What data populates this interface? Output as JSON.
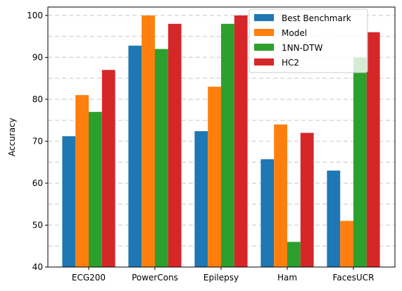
{
  "chart_data": {
    "type": "bar",
    "title": "",
    "xlabel": "",
    "ylabel": "Accuracy",
    "ylim": [
      40,
      102
    ],
    "yticks": [
      40,
      50,
      60,
      70,
      80,
      90,
      100
    ],
    "grid": "horizontal dashed, light gray",
    "legend_position": "top-right",
    "categories": [
      "ECG200",
      "PowerCons",
      "Epilepsy",
      "Ham",
      "FacesUCR"
    ],
    "series": [
      {
        "name": "Best Benchmark",
        "color": "#1f77b4",
        "values": [
          71.2,
          92.8,
          72.4,
          65.7,
          63.0
        ]
      },
      {
        "name": "Model",
        "color": "#ff7f0e",
        "values": [
          81.0,
          100.0,
          83.0,
          74.0,
          51.0
        ]
      },
      {
        "name": "1NN-DTW",
        "color": "#2ca02c",
        "values": [
          77.0,
          92.0,
          98.0,
          46.0,
          90.0
        ]
      },
      {
        "name": "HC2",
        "color": "#d62728",
        "values": [
          87.0,
          98.0,
          100.0,
          72.0,
          96.0
        ]
      }
    ]
  }
}
